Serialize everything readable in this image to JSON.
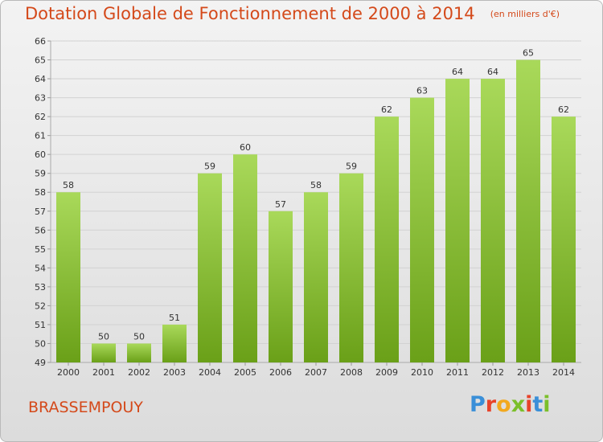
{
  "header": {
    "title": "Dotation Globale de Fonctionnement de 2000 à 2014",
    "unit": "(en milliers d'€)"
  },
  "footer": {
    "commune": "BRASSEMPOUY",
    "logo_text": "Proxiti",
    "logo_colors": [
      "#3a8fd8",
      "#e8432a",
      "#f2a91f",
      "#7bbf2a",
      "#e8432a",
      "#3a8fd8",
      "#7bbf2a"
    ]
  },
  "colors": {
    "accent": "#d4491a",
    "bar_light": "#a9d95a",
    "bar_dark": "#6aa018",
    "grid": "#d2d2d2",
    "axis_text": "#333333"
  },
  "chart_data": {
    "type": "bar",
    "title": "Dotation Globale de Fonctionnement de 2000 à 2014",
    "subtitle": "(en milliers d'€)",
    "categories": [
      "2000",
      "2001",
      "2002",
      "2003",
      "2004",
      "2005",
      "2006",
      "2007",
      "2008",
      "2009",
      "2010",
      "2011",
      "2012",
      "2013",
      "2014"
    ],
    "values": [
      58,
      50,
      50,
      51,
      59,
      60,
      57,
      58,
      59,
      62,
      63,
      64,
      64,
      65,
      62
    ],
    "ylim": [
      49,
      66
    ],
    "yticks": [
      49,
      50,
      51,
      52,
      53,
      54,
      55,
      56,
      57,
      58,
      59,
      60,
      61,
      62,
      63,
      64,
      65,
      66
    ],
    "grid": true,
    "data_labels": true
  }
}
